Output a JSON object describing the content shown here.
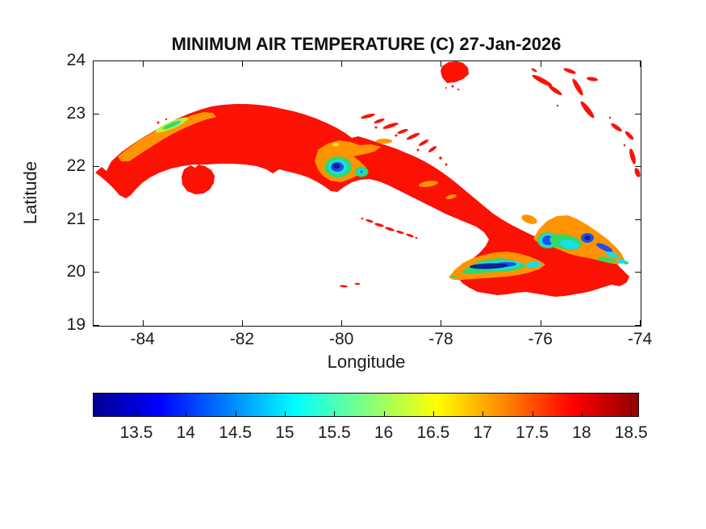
{
  "figure": {
    "background": "#ffffff",
    "axes_color": "#111111",
    "text_color": "#1c1c1c"
  },
  "chart_data": {
    "type": "heatmap",
    "title": "MINIMUM AIR TEMPERATURE (C) 27-Jan-2026",
    "xlabel": "Longitude",
    "ylabel": "Latitude",
    "region": "Cuba and nearby islands (geographic map, white = sea / no data)",
    "xlim": [
      -85,
      -74
    ],
    "ylim": [
      19,
      24
    ],
    "grid": false,
    "colormap": "jet",
    "xticks": [
      {
        "value": -84,
        "label": "-84"
      },
      {
        "value": -82,
        "label": "-82"
      },
      {
        "value": -80,
        "label": "-80"
      },
      {
        "value": -78,
        "label": "-78"
      },
      {
        "value": -76,
        "label": "-76"
      },
      {
        "value": -74,
        "label": "-74"
      }
    ],
    "yticks": [
      {
        "value": 24,
        "label": "24"
      },
      {
        "value": 23,
        "label": "23"
      },
      {
        "value": 22,
        "label": "22"
      },
      {
        "value": 21,
        "label": "21"
      },
      {
        "value": 20,
        "label": "20"
      },
      {
        "value": 19,
        "label": "19"
      }
    ],
    "colorbar": {
      "orientation": "horizontal",
      "units": "C",
      "range": [
        13.06,
        18.58
      ],
      "ticks": [
        {
          "value": 13.5,
          "label": "13.5"
        },
        {
          "value": 14,
          "label": "14"
        },
        {
          "value": 14.5,
          "label": "14.5"
        },
        {
          "value": 15,
          "label": "15"
        },
        {
          "value": 15.5,
          "label": "15.5"
        },
        {
          "value": 16,
          "label": "16"
        },
        {
          "value": 16.5,
          "label": "16.5"
        },
        {
          "value": 17,
          "label": "17"
        },
        {
          "value": 17.5,
          "label": "17.5"
        },
        {
          "value": 18,
          "label": "18"
        },
        {
          "value": 18.5,
          "label": "18.5"
        }
      ],
      "stops": [
        "#000090 0%",
        "#0000ff 12%",
        "#00ffff 37%",
        "#80ff80 50%",
        "#ffff00 63%",
        "#ff8000 76%",
        "#ff0000 88%",
        "#900000 100%"
      ]
    },
    "palette": {
      "hot_red": "#fb1205",
      "warm_orange": "#ff9400",
      "yellow": "#ffe12e",
      "yellow_green": "#c2ee3c",
      "green": "#2fd96b",
      "cyan": "#18dfe8",
      "blue": "#1d50ee",
      "navy": "#0d2096"
    },
    "features": [
      {
        "area": "Cuba lowlands (most of the island)",
        "approx_min_temp_c": 18.5
      },
      {
        "area": "Cordillera de Guaniguanico ridge, west (~-83.4, 22.75)",
        "approx_min_temp_c": 16.0
      },
      {
        "area": "Sierra del Escambray core (~-80.1, 22.0)",
        "approx_min_temp_c": 13.2
      },
      {
        "area": "Escambray secondary peak (~-79.7, 21.95)",
        "approx_min_temp_c": 14.5
      },
      {
        "area": "Sierra Maestra ridge, south-east coast (~-77.0, 20.0)",
        "approx_min_temp_c": 13.1
      },
      {
        "area": "Nipe-Sagua-Baracoa massif (~-75.1, 20.4)",
        "approx_min_temp_c": 13.5
      },
      {
        "area": "Foothills around mountain ranges",
        "approx_min_temp_c": 17.0
      },
      {
        "area": "Isla de la Juventud",
        "approx_min_temp_c": 18.5
      },
      {
        "area": "Offshore cays, Cayman Islands and Bahamas islands",
        "approx_min_temp_c": 18.5
      }
    ]
  }
}
